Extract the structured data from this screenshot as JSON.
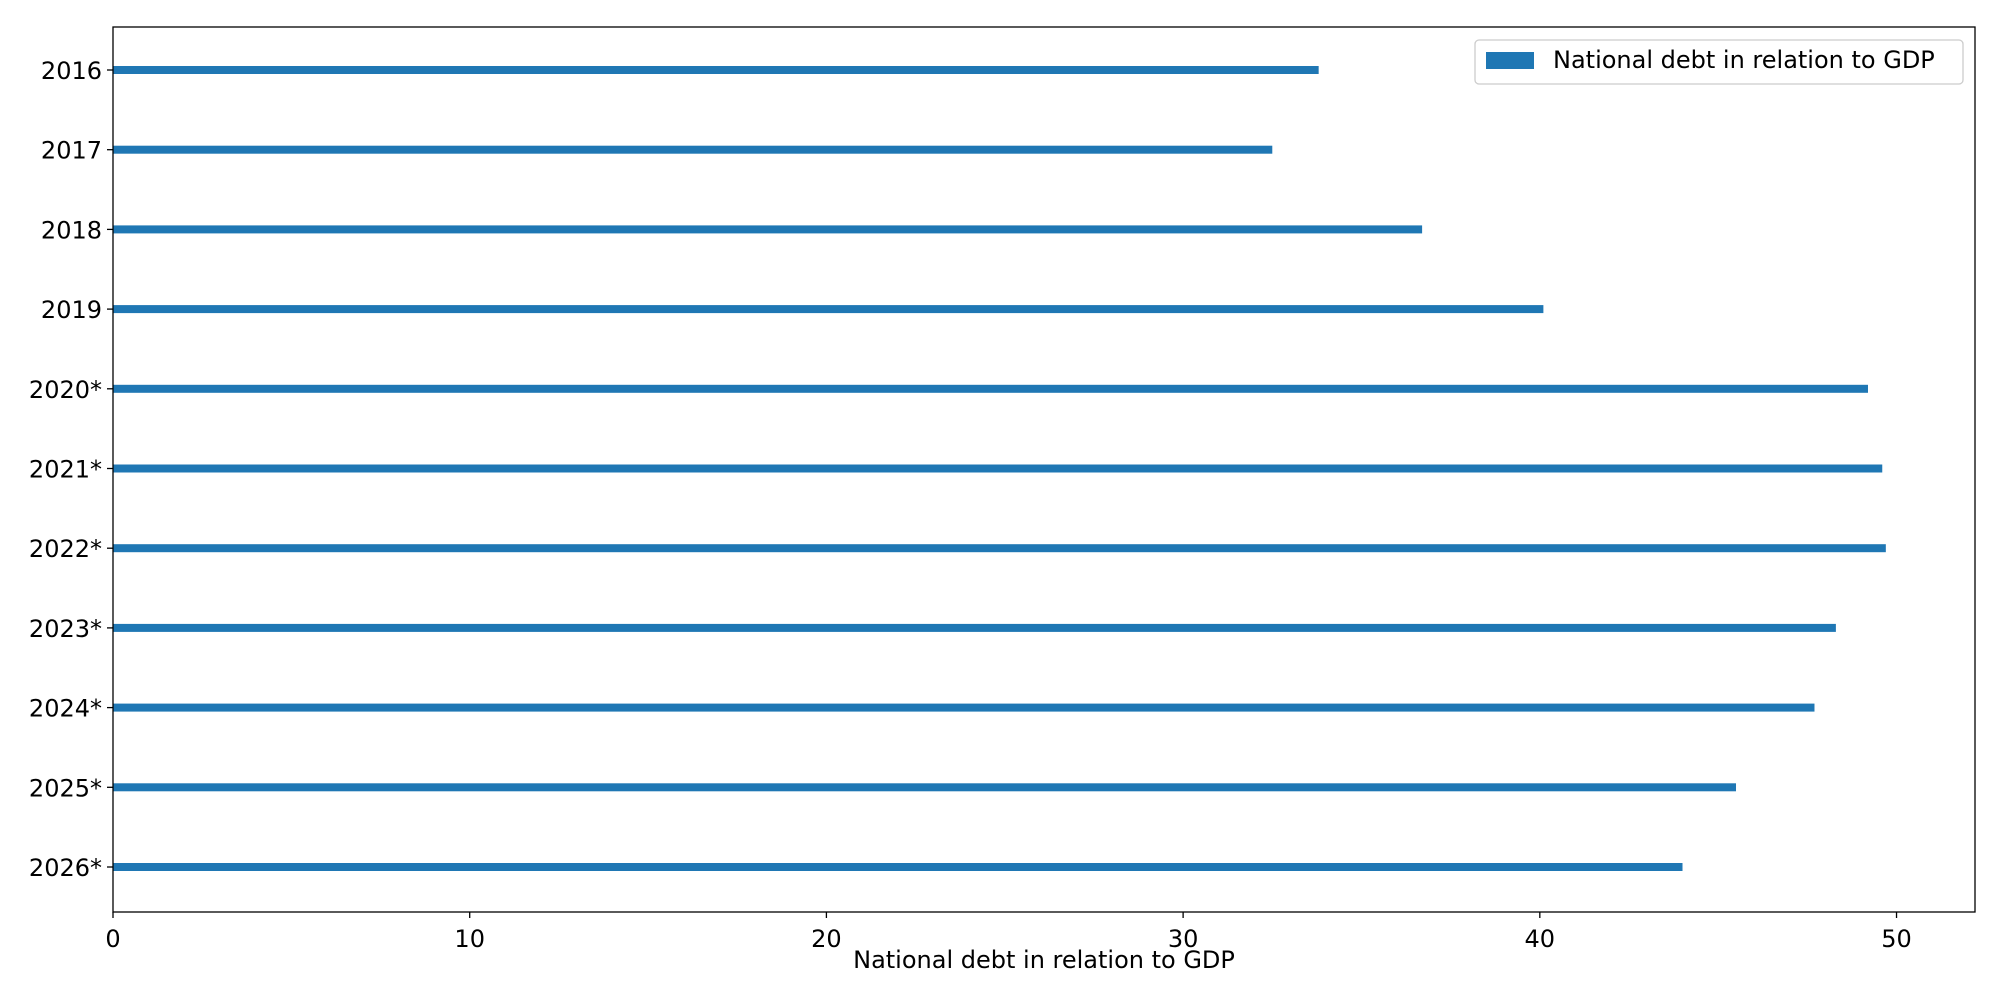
{
  "chart_data": {
    "type": "bar",
    "orientation": "horizontal",
    "categories": [
      "2016",
      "2017",
      "2018",
      "2019",
      "2020*",
      "2021*",
      "2022*",
      "2023*",
      "2024*",
      "2025*",
      "2026*"
    ],
    "series": [
      {
        "name": "National debt in relation to GDP",
        "values": [
          33.8,
          32.5,
          36.7,
          40.1,
          49.2,
          49.6,
          49.7,
          48.3,
          47.7,
          45.5,
          44.0
        ],
        "color": "#1f77b4"
      }
    ],
    "title": "",
    "xlabel": "National debt in relation to GDP",
    "ylabel": "",
    "xlim": [
      0,
      52.2
    ],
    "xticks": [
      0,
      10,
      20,
      30,
      40,
      50
    ],
    "grid": false,
    "legend_position": "top-right"
  }
}
